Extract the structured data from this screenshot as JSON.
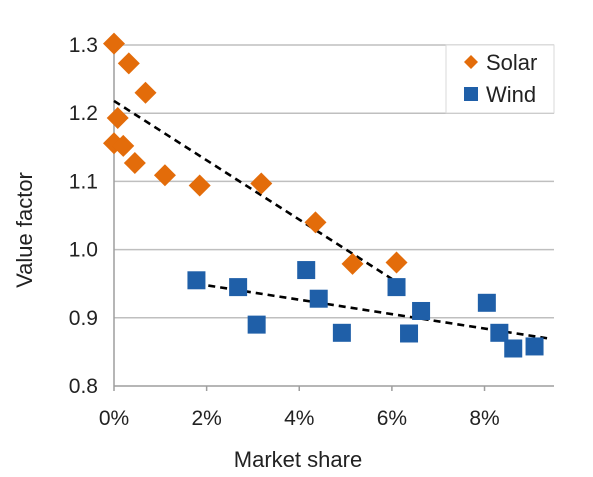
{
  "chart_data": {
    "type": "scatter",
    "xlabel": "Market share",
    "ylabel": "Value factor",
    "xlim": [
      0,
      0.095
    ],
    "ylim": [
      0.8,
      1.3
    ],
    "xticks": [
      0,
      0.02,
      0.04,
      0.06,
      0.08
    ],
    "xtick_labels": [
      "0%",
      "2%",
      "4%",
      "6%",
      "8%"
    ],
    "yticks": [
      0.8,
      0.9,
      1.0,
      1.1,
      1.2,
      1.3
    ],
    "ytick_labels": [
      "0.8",
      "0.9",
      "1.0",
      "1.1",
      "1.2",
      "1.3"
    ],
    "grid": "horizontal",
    "legend_position": "top-right",
    "series": [
      {
        "name": "Solar",
        "marker": "diamond",
        "color": "#E36C0A",
        "points": [
          {
            "x": 0.0,
            "y": 1.302
          },
          {
            "x": 0.0032,
            "y": 1.273
          },
          {
            "x": 0.0068,
            "y": 1.23
          },
          {
            "x": 0.0008,
            "y": 1.193
          },
          {
            "x": 0.0,
            "y": 1.156
          },
          {
            "x": 0.002,
            "y": 1.152
          },
          {
            "x": 0.0045,
            "y": 1.127
          },
          {
            "x": 0.011,
            "y": 1.109
          },
          {
            "x": 0.0185,
            "y": 1.094
          },
          {
            "x": 0.0318,
            "y": 1.097
          },
          {
            "x": 0.0435,
            "y": 1.04
          },
          {
            "x": 0.0515,
            "y": 0.979
          },
          {
            "x": 0.061,
            "y": 0.981
          }
        ],
        "trendline": {
          "x": [
            0.0,
            0.06
          ],
          "y": [
            1.218,
            0.957
          ]
        }
      },
      {
        "name": "Wind",
        "marker": "square",
        "color": "#1F5FA8",
        "points": [
          {
            "x": 0.0178,
            "y": 0.955
          },
          {
            "x": 0.0268,
            "y": 0.945
          },
          {
            "x": 0.0308,
            "y": 0.89
          },
          {
            "x": 0.0415,
            "y": 0.97
          },
          {
            "x": 0.0442,
            "y": 0.928
          },
          {
            "x": 0.0492,
            "y": 0.878
          },
          {
            "x": 0.061,
            "y": 0.945
          },
          {
            "x": 0.0637,
            "y": 0.877
          },
          {
            "x": 0.0663,
            "y": 0.91
          },
          {
            "x": 0.0805,
            "y": 0.922
          },
          {
            "x": 0.0832,
            "y": 0.878
          },
          {
            "x": 0.0862,
            "y": 0.855
          },
          {
            "x": 0.0908,
            "y": 0.858
          }
        ],
        "trendline": {
          "x": [
            0.0178,
            0.0935
          ],
          "y": [
            0.95,
            0.87
          ]
        }
      }
    ]
  }
}
